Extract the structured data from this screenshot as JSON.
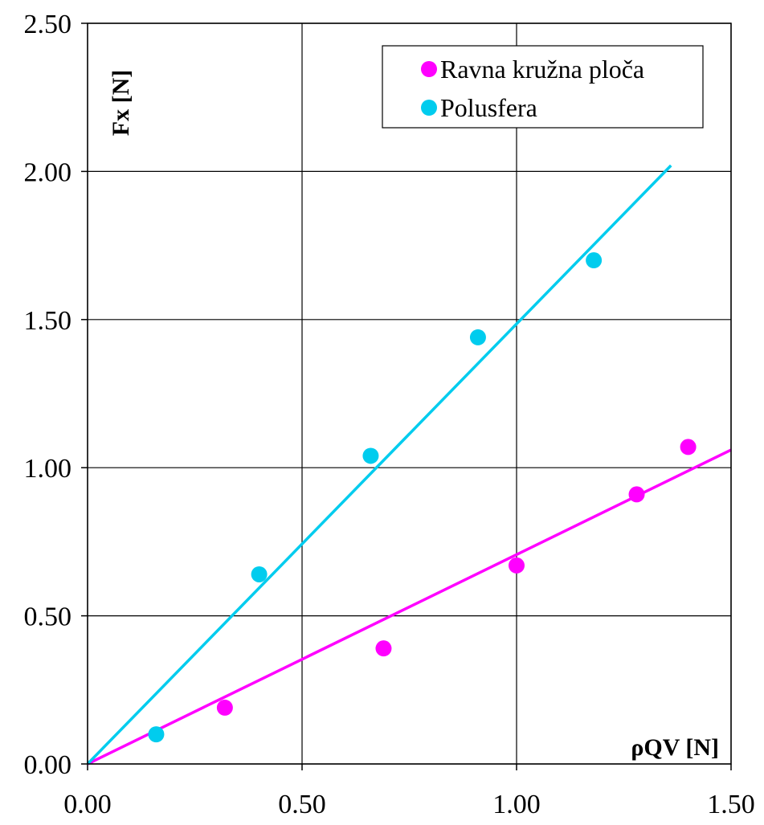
{
  "chart_data": {
    "type": "scatter",
    "title": "",
    "xlabel": "ρQV [N]",
    "ylabel": "Fx [N]",
    "xlim": [
      0,
      1.5
    ],
    "ylim": [
      0,
      2.5
    ],
    "x_ticks": [
      "0.00",
      "0.50",
      "1.00",
      "1.50"
    ],
    "y_ticks": [
      "0.00",
      "0.50",
      "1.00",
      "1.50",
      "2.00",
      "2.50"
    ],
    "grid": true,
    "legend_position": "top-right",
    "series": [
      {
        "name": "Ravna kružna ploča",
        "color": "#ff00ff",
        "points": [
          {
            "x": 0.32,
            "y": 0.19
          },
          {
            "x": 0.69,
            "y": 0.39
          },
          {
            "x": 1.0,
            "y": 0.67
          },
          {
            "x": 1.28,
            "y": 0.91
          },
          {
            "x": 1.4,
            "y": 1.07
          }
        ],
        "trendline": {
          "x": [
            0,
            1.5
          ],
          "y": [
            0,
            1.06
          ]
        }
      },
      {
        "name": "Polusfera",
        "color": "#00ccee",
        "points": [
          {
            "x": 0.16,
            "y": 0.1
          },
          {
            "x": 0.4,
            "y": 0.64
          },
          {
            "x": 0.66,
            "y": 1.04
          },
          {
            "x": 0.91,
            "y": 1.44
          },
          {
            "x": 1.18,
            "y": 1.7
          }
        ],
        "trendline": {
          "x": [
            0,
            1.36
          ],
          "y": [
            0,
            2.02
          ]
        }
      }
    ]
  }
}
